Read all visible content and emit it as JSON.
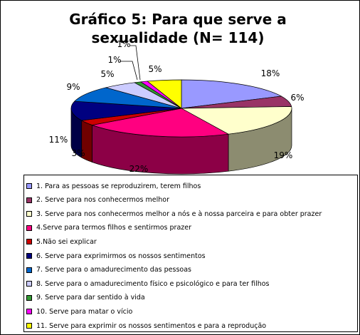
{
  "chart_data": {
    "type": "pie",
    "title": "Gráfico 5: Para que serve a\nsexualidade (N= 114)",
    "slices": [
      {
        "label": "1. Para as pessoas se reproduzirem, terem filhos",
        "value": 18,
        "display": "18%",
        "color": "#9999FF"
      },
      {
        "label": "2. Serve para nos conhecermos melhor",
        "value": 6,
        "display": "6%",
        "color": "#993366"
      },
      {
        "label": "3. Serve para nos conhecermos melhor a nós e à nossa parceira e para obter prazer",
        "value": 19,
        "display": "19%",
        "color": "#FFFFCC"
      },
      {
        "label": "4.Serve para termos filhos e sentirmos prazer",
        "value": 22,
        "display": "22%",
        "color": "#FF0080"
      },
      {
        "label": "5.Não sei explicar",
        "value": 3,
        "display": "3%",
        "color": "#CC0000"
      },
      {
        "label": "6. Serve para exprimirmos os nossos sentimentos",
        "value": 11,
        "display": "11%",
        "color": "#000080"
      },
      {
        "label": "7. Serve para o amadurecimento das pessoas",
        "value": 9,
        "display": "9%",
        "color": "#0066CC"
      },
      {
        "label": "8. Serve para o amadurecimento físico e psicológico e para ter filhos",
        "value": 5,
        "display": "5%",
        "color": "#CCCCFF"
      },
      {
        "label": "9. Serve para dar sentido à vida",
        "value": 1,
        "display": "1%",
        "color": "#339933"
      },
      {
        "label": "10. Serve para matar o vício",
        "value": 1,
        "display": "1%",
        "color": "#FF00FF"
      },
      {
        "label": "11. Serve para exprimir os nossos sentimentos e para a reprodução",
        "value": 5,
        "display": "5%",
        "color": "#FFFF00"
      }
    ],
    "legend_position": "bottom",
    "three_d": true
  }
}
